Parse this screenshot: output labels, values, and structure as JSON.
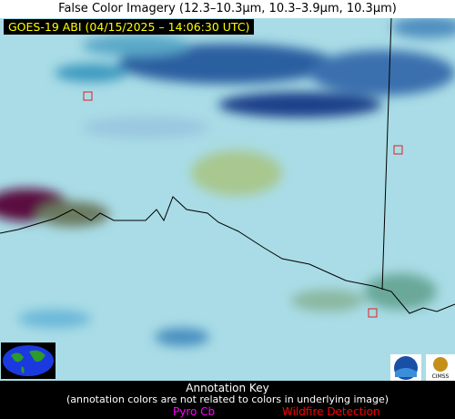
{
  "header": {
    "title": "False Color Imagery (12.3–10.3µm, 10.3–3.9µm, 10.3µm)",
    "timestamp": "GOES-19 ABI (04/15/2025 – 14:06:30 UTC)"
  },
  "logos": {
    "cimss": "CIMSS"
  },
  "annotation_key": {
    "title": "Annotation Key",
    "note": "(annotation colors are not related to colors in underlying image)",
    "items": [
      {
        "label": "Pyro Cb"
      },
      {
        "label": "Wildfire Detection"
      }
    ]
  }
}
